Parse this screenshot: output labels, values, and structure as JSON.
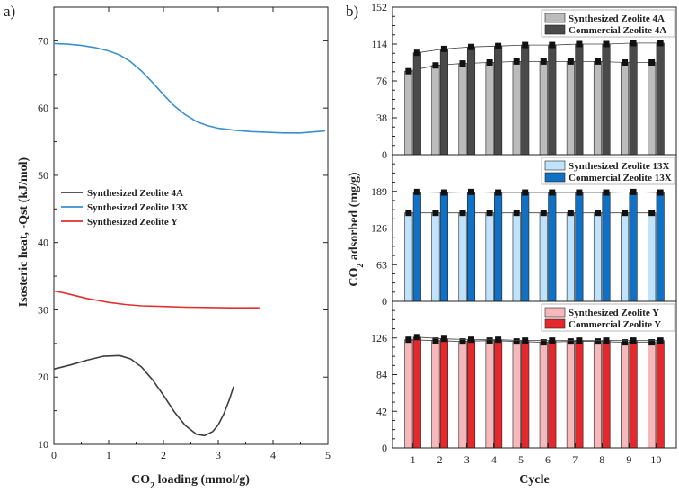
{
  "colors": {
    "zeolite_4a": "#3d3d3d",
    "zeolite_13x": "#3a8fd0",
    "zeolite_y": "#e03030",
    "synth_4a_bar": "#bcbcbc",
    "comm_4a_bar": "#4a4a4a",
    "synth_13x_bar": "#bfe3fa",
    "comm_13x_bar": "#1070c4",
    "synth_y_bar": "#f7b8bc",
    "comm_y_bar": "#e5282c"
  },
  "chart_data": [
    {
      "panel": "a)",
      "type": "line",
      "xlabel": "CO2 loading (mmol/g)",
      "ylabel": "Isosteric heat, -Qst (kJ/mol)",
      "xlim": [
        0,
        5
      ],
      "ylim": [
        10,
        75
      ],
      "xticks": [
        0,
        1,
        2,
        3,
        4,
        5
      ],
      "yticks": [
        10,
        20,
        30,
        40,
        50,
        60,
        70
      ],
      "legend_position": "center-left",
      "series": [
        {
          "name": "Synthesized Zeolite 4A",
          "x": [
            0,
            0.3,
            0.6,
            0.9,
            1.2,
            1.4,
            1.6,
            1.8,
            2.0,
            2.2,
            2.4,
            2.6,
            2.75,
            2.9,
            3.0,
            3.1,
            3.2,
            3.28
          ],
          "y": [
            21.2,
            21.8,
            22.5,
            23.1,
            23.2,
            22.7,
            21.5,
            19.6,
            17.3,
            14.8,
            12.8,
            11.5,
            11.3,
            11.9,
            12.9,
            14.5,
            16.6,
            18.6
          ]
        },
        {
          "name": "Synthesized Zeolite 13X",
          "x": [
            0,
            0.25,
            0.5,
            0.75,
            1.0,
            1.2,
            1.4,
            1.6,
            1.8,
            2.0,
            2.2,
            2.4,
            2.6,
            2.8,
            3.0,
            3.3,
            3.6,
            3.9,
            4.2,
            4.5,
            4.8,
            4.95
          ],
          "y": [
            69.6,
            69.5,
            69.3,
            69.0,
            68.5,
            67.9,
            66.9,
            65.5,
            63.8,
            62.0,
            60.3,
            59.0,
            58.0,
            57.4,
            57.0,
            56.7,
            56.5,
            56.4,
            56.3,
            56.3,
            56.5,
            56.6
          ]
        },
        {
          "name": "Synthesized Zeolite Y",
          "x": [
            0,
            0.2,
            0.4,
            0.6,
            0.8,
            1.0,
            1.3,
            1.6,
            2.0,
            2.4,
            2.8,
            3.2,
            3.6,
            3.75
          ],
          "y": [
            32.8,
            32.5,
            32.1,
            31.7,
            31.4,
            31.1,
            30.8,
            30.6,
            30.5,
            30.4,
            30.35,
            30.3,
            30.3,
            30.3
          ]
        }
      ]
    },
    {
      "panel": "b)",
      "type": "bar",
      "xlabel": "Cycle",
      "ylabel": "CO2 adsorbed (mg/g)",
      "categories": [
        "1",
        "2",
        "3",
        "4",
        "5",
        "6",
        "7",
        "8",
        "9",
        "10"
      ],
      "subplots": [
        {
          "ylim": [
            0,
            152
          ],
          "yticks": [
            "0",
            "38",
            "76",
            "114",
            "152"
          ],
          "legend_position": "top-right",
          "series": [
            {
              "name": "Synthesized Zeolite 4A",
              "values": [
                86,
                92,
                94,
                95,
                96,
                96,
                96,
                96,
                95,
                95
              ]
            },
            {
              "name": "Commercial Zeolite 4A",
              "values": [
                105,
                109,
                111,
                112,
                113,
                113,
                114,
                114,
                115,
                115
              ]
            }
          ]
        },
        {
          "ylim": [
            0,
            252
          ],
          "yticks": [
            "0",
            "63",
            "126",
            "189"
          ],
          "legend_position": "top-right",
          "series": [
            {
              "name": "Synthesized Zeolite 13X",
              "values": [
                152,
                152,
                152,
                152,
                152,
                152,
                152,
                152,
                152,
                152
              ]
            },
            {
              "name": "Commercial Zeolite 13X",
              "values": [
                188,
                187,
                188,
                187,
                187,
                187,
                187,
                187,
                188,
                187
              ]
            }
          ]
        },
        {
          "ylim": [
            0,
            168
          ],
          "yticks": [
            "0",
            "42",
            "84",
            "126"
          ],
          "legend_position": "top-right",
          "series": [
            {
              "name": "Synthesized Zeolite Y",
              "values": [
                124,
                123,
                122,
                123,
                122,
                121,
                122,
                122,
                121,
                121
              ]
            },
            {
              "name": "Commercial Zeolite Y",
              "values": [
                127,
                125,
                124,
                124,
                123,
                123,
                123,
                123,
                123,
                123
              ]
            }
          ]
        }
      ]
    }
  ]
}
